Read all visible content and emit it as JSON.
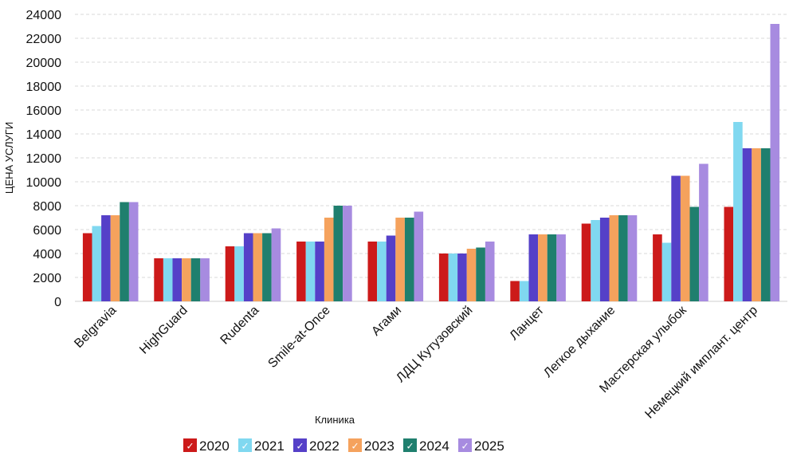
{
  "chart_data": {
    "type": "bar",
    "xlabel": "Клиника",
    "ylabel": "ЦЕНА УСЛУГИ",
    "ylim": [
      0,
      24000
    ],
    "yticks": [
      0,
      2000,
      4000,
      6000,
      8000,
      10000,
      12000,
      14000,
      16000,
      18000,
      20000,
      22000,
      24000
    ],
    "grid": "horizontal dashed",
    "legend_position": "bottom",
    "categories": [
      "Belgravia",
      "HighGuard",
      "Rudenta",
      "Smile-at-Once",
      "Агами",
      "ЛДЦ Кутузовский",
      "Ланцет",
      "Легкое дыхание",
      "Мастерская улыбок",
      "Немецкий имплант. центр"
    ],
    "series": [
      {
        "name": "2020",
        "color": "#cc1a1a",
        "values": [
          5700,
          3600,
          4600,
          5000,
          5000,
          4000,
          1700,
          6500,
          5600,
          7900
        ]
      },
      {
        "name": "2021",
        "color": "#80d8f0",
        "values": [
          6300,
          3600,
          4600,
          5000,
          5000,
          4000,
          1700,
          6800,
          4900,
          15000
        ]
      },
      {
        "name": "2022",
        "color": "#5540c8",
        "values": [
          7200,
          3600,
          5700,
          5000,
          5500,
          4000,
          5600,
          7000,
          10500,
          12800
        ]
      },
      {
        "name": "2023",
        "color": "#f5a25d",
        "values": [
          7200,
          3600,
          5700,
          7000,
          7000,
          4400,
          5600,
          7200,
          10500,
          12800
        ]
      },
      {
        "name": "2024",
        "color": "#1f7f6e",
        "values": [
          8300,
          3600,
          5700,
          8000,
          7000,
          4500,
          5600,
          7200,
          7900,
          12800
        ]
      },
      {
        "name": "2025",
        "color": "#a78be0",
        "values": [
          8300,
          3600,
          6100,
          8000,
          7500,
          5000,
          5600,
          7200,
          11500,
          23200
        ]
      }
    ]
  }
}
